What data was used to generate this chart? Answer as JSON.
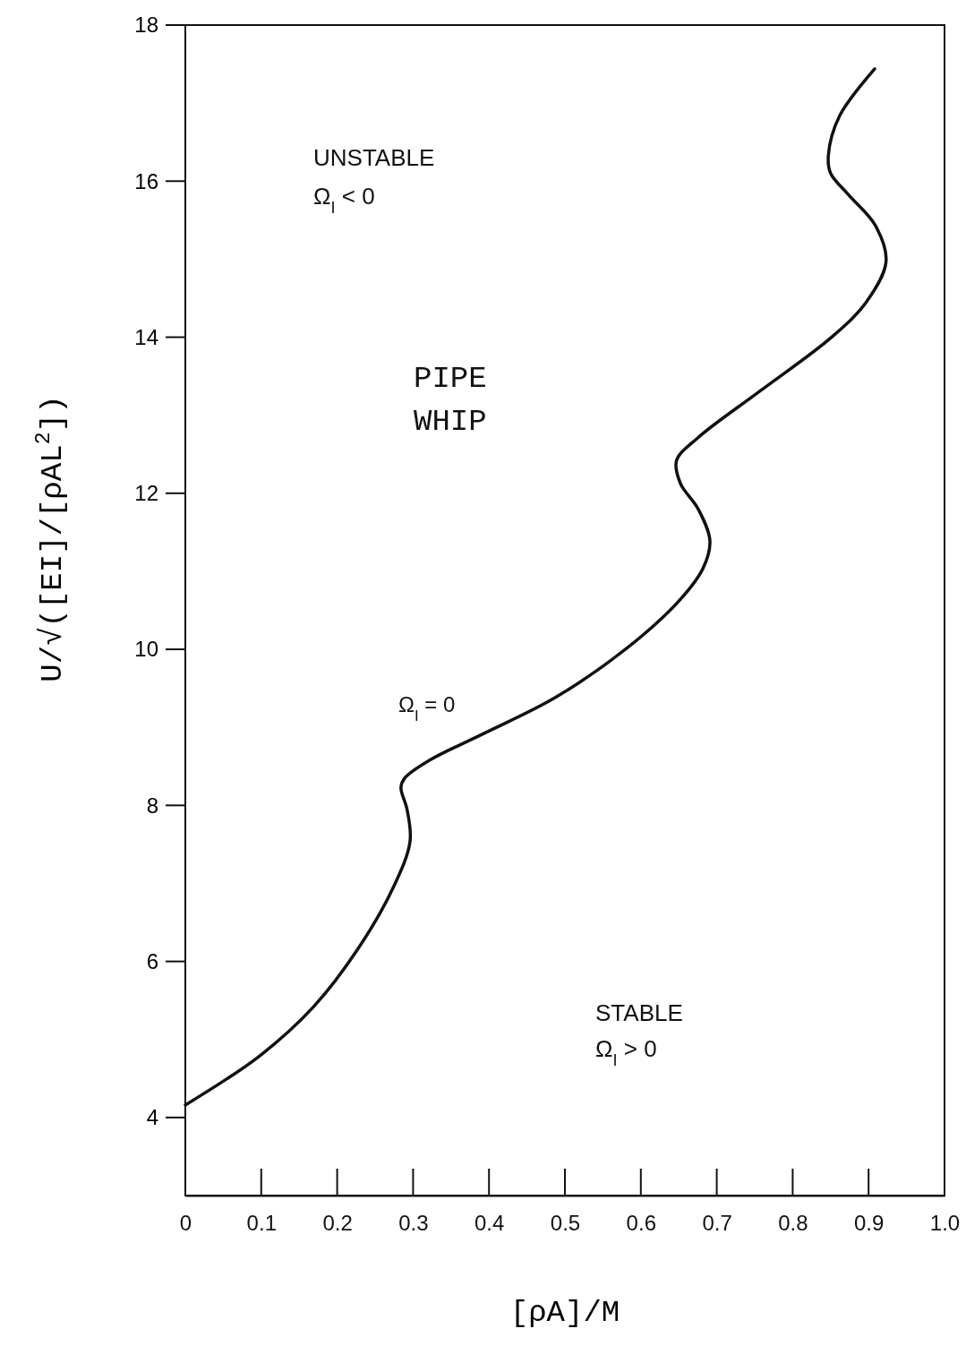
{
  "chart_data": {
    "type": "line",
    "xlabel": "[ρA]/M",
    "ylabel": "U/√([EI]/[ρAL$^{2}$])",
    "xlim": [
      0,
      1.0
    ],
    "ylim": [
      3,
      18
    ],
    "xticks": [
      0,
      0.1,
      0.2,
      0.3,
      0.4,
      0.5,
      0.6,
      0.7,
      0.8,
      0.9,
      {
        "value": 1.0,
        "label": "1.0"
      }
    ],
    "yticks": [
      4,
      6,
      8,
      10,
      12,
      14,
      16,
      18
    ],
    "grid": false,
    "marker": "none",
    "line_style": "solid",
    "series": [
      {
        "color": "#111111",
        "x": [
          0,
          0.098,
          0.169,
          0.228,
          0.275,
          0.296,
          0.292,
          0.284,
          0.289,
          0.322,
          0.393,
          0.487,
          0.581,
          0.652,
          0.682,
          0.691,
          0.676,
          0.652,
          0.647,
          0.675,
          0.757,
          0.85,
          0.897,
          0.923,
          0.909,
          0.874,
          0.85,
          0.847,
          0.862,
          0.908
        ],
        "values": [
          4.16,
          4.79,
          5.42,
          6.17,
          6.97,
          7.54,
          7.95,
          8.23,
          8.35,
          8.58,
          8.92,
          9.38,
          10.01,
          10.64,
          11.04,
          11.39,
          11.79,
          12.13,
          12.42,
          12.71,
          13.31,
          13.99,
          14.45,
          14.97,
          15.43,
          15.82,
          16.1,
          16.33,
          16.84,
          17.44
        ]
      }
    ],
    "annotations": [
      "UNSTABLE",
      "Ω$_{I}$ < 0",
      "PIPE",
      "WHIP",
      "Ω$_{I}$ = 0",
      "STABLE",
      "Ω$_{I}$ > 0"
    ]
  }
}
